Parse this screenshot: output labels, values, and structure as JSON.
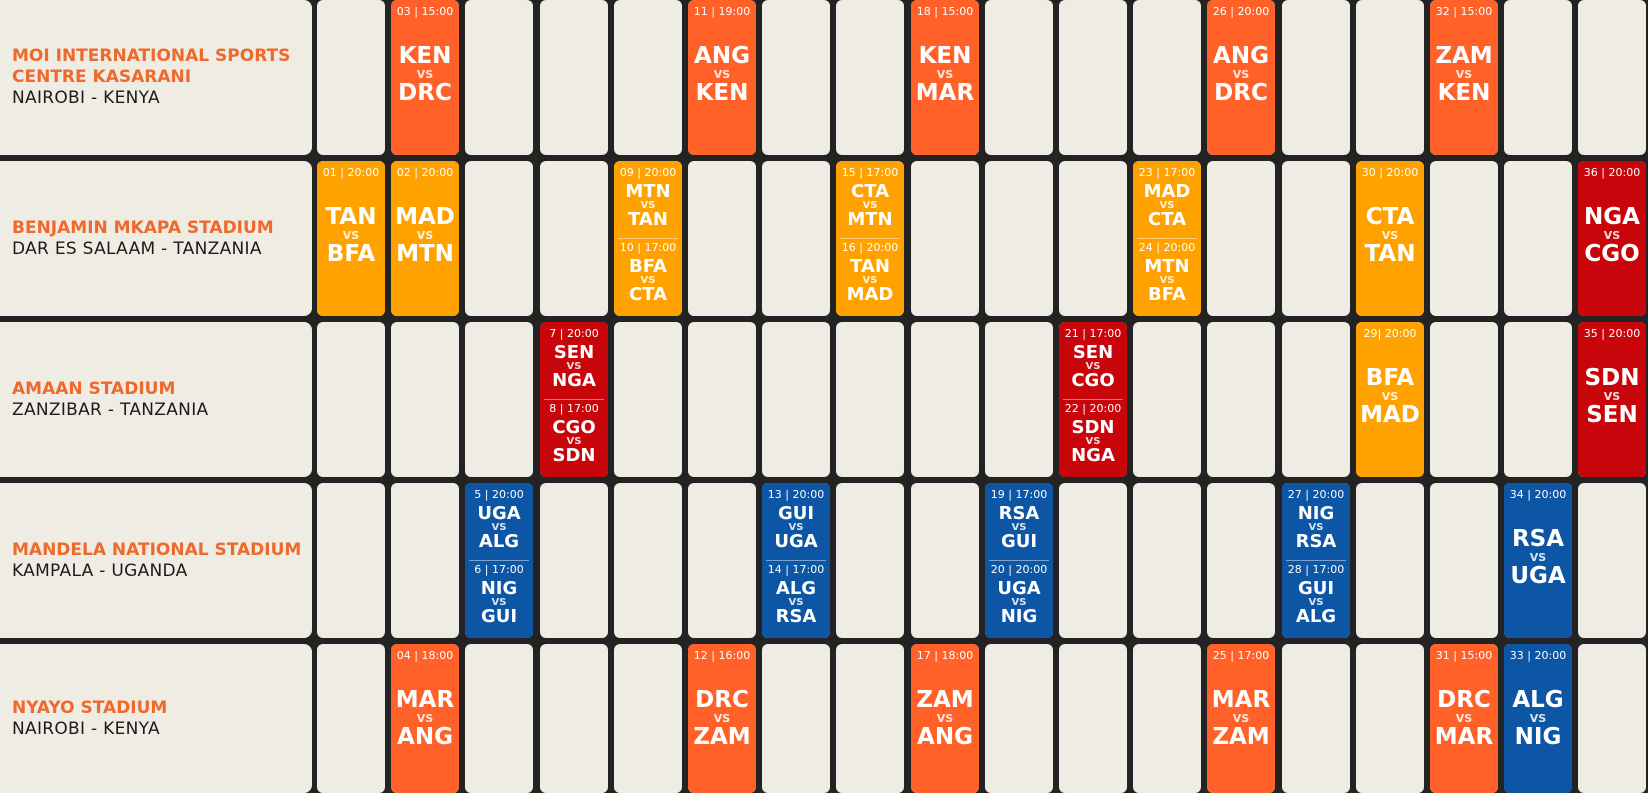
{
  "colors": {
    "background": "#232323",
    "cell": "#efece4",
    "venue_name": "#ee6a2c",
    "venue_location": "#1b1b1b",
    "group_a": "#ff6129",
    "group_b": "#ffa200",
    "group_c": "#c8050a",
    "group_d": "#0d56a5"
  },
  "venues": [
    {
      "name": "MOI INTERNATIONAL SPORTS\nCENTRE KASARANI",
      "location": "NAIROBI - KENYA"
    },
    {
      "name": "BENJAMIN MKAPA STADIUM",
      "location": "DAR ES SALAAM - TANZANIA"
    },
    {
      "name": "AMAAN STADIUM",
      "location": "ZANZIBAR - TANZANIA"
    },
    {
      "name": "MANDELA NATIONAL STADIUM",
      "location": "KAMPALA - UGANDA"
    },
    {
      "name": "NYAYO STADIUM",
      "location": "NAIROBI - KENYA"
    }
  ],
  "matches": [
    {
      "row": 0,
      "col": 1,
      "group": "a",
      "games": [
        {
          "label": "03 | 15:00",
          "home": "KEN",
          "vs": "VS",
          "away": "DRC"
        }
      ]
    },
    {
      "row": 0,
      "col": 5,
      "group": "a",
      "games": [
        {
          "label": "11 | 19:00",
          "home": "ANG",
          "vs": "VS",
          "away": "KEN"
        }
      ]
    },
    {
      "row": 0,
      "col": 8,
      "group": "a",
      "games": [
        {
          "label": "18 | 15:00",
          "home": "KEN",
          "vs": "VS",
          "away": "MAR"
        }
      ]
    },
    {
      "row": 0,
      "col": 12,
      "group": "a",
      "games": [
        {
          "label": "26 | 20:00",
          "home": "ANG",
          "vs": "VS",
          "away": "DRC"
        }
      ]
    },
    {
      "row": 0,
      "col": 15,
      "group": "a",
      "games": [
        {
          "label": "32 | 15:00",
          "home": "ZAM",
          "vs": "VS",
          "away": "KEN"
        }
      ]
    },
    {
      "row": 1,
      "col": 0,
      "group": "b",
      "games": [
        {
          "label": "01 | 20:00",
          "home": "TAN",
          "vs": "VS",
          "away": "BFA"
        }
      ]
    },
    {
      "row": 1,
      "col": 1,
      "group": "b",
      "games": [
        {
          "label": "02 | 20:00",
          "home": "MAD",
          "vs": "VS",
          "away": "MTN"
        }
      ]
    },
    {
      "row": 1,
      "col": 4,
      "group": "b",
      "games": [
        {
          "label": "09 | 20:00",
          "home": "MTN",
          "vs": "VS",
          "away": "TAN"
        },
        {
          "label": "10 | 17:00",
          "home": "BFA",
          "vs": "VS",
          "away": "CTA"
        }
      ]
    },
    {
      "row": 1,
      "col": 7,
      "group": "b",
      "games": [
        {
          "label": "15 | 17:00",
          "home": "CTA",
          "vs": "VS",
          "away": "MTN"
        },
        {
          "label": "16 | 20:00",
          "home": "TAN",
          "vs": "VS",
          "away": "MAD"
        }
      ]
    },
    {
      "row": 1,
      "col": 11,
      "group": "b",
      "games": [
        {
          "label": "23 | 17:00",
          "home": "MAD",
          "vs": "VS",
          "away": "CTA"
        },
        {
          "label": "24 | 20:00",
          "home": "MTN",
          "vs": "VS",
          "away": "BFA"
        }
      ]
    },
    {
      "row": 1,
      "col": 14,
      "group": "b",
      "games": [
        {
          "label": "30 | 20:00",
          "home": "CTA",
          "vs": "VS",
          "away": "TAN"
        }
      ]
    },
    {
      "row": 1,
      "col": 17,
      "group": "c",
      "games": [
        {
          "label": "36 | 20:00",
          "home": "NGA",
          "vs": "VS",
          "away": "CGO"
        }
      ]
    },
    {
      "row": 2,
      "col": 3,
      "group": "c",
      "games": [
        {
          "label": "7 | 20:00",
          "home": "SEN",
          "vs": "VS",
          "away": "NGA"
        },
        {
          "label": "8 | 17:00",
          "home": "CGO",
          "vs": "VS",
          "away": "SDN"
        }
      ]
    },
    {
      "row": 2,
      "col": 10,
      "group": "c",
      "games": [
        {
          "label": "21 | 17:00",
          "home": "SEN",
          "vs": "VS",
          "away": "CGO"
        },
        {
          "label": "22 | 20:00",
          "home": "SDN",
          "vs": "VS",
          "away": "NGA"
        }
      ]
    },
    {
      "row": 2,
      "col": 14,
      "group": "b",
      "games": [
        {
          "label": "29| 20:00",
          "home": "BFA",
          "vs": "VS",
          "away": "MAD"
        }
      ]
    },
    {
      "row": 2,
      "col": 17,
      "group": "c",
      "games": [
        {
          "label": "35 | 20:00",
          "home": "SDN",
          "vs": "VS",
          "away": "SEN"
        }
      ]
    },
    {
      "row": 3,
      "col": 2,
      "group": "d",
      "games": [
        {
          "label": "5 | 20:00",
          "home": "UGA",
          "vs": "VS",
          "away": "ALG"
        },
        {
          "label": "6 | 17:00",
          "home": "NIG",
          "vs": "VS",
          "away": "GUI"
        }
      ]
    },
    {
      "row": 3,
      "col": 6,
      "group": "d",
      "games": [
        {
          "label": "13 | 20:00",
          "home": "GUI",
          "vs": "VS",
          "away": "UGA"
        },
        {
          "label": "14 | 17:00",
          "home": "ALG",
          "vs": "VS",
          "away": "RSA"
        }
      ]
    },
    {
      "row": 3,
      "col": 9,
      "group": "d",
      "games": [
        {
          "label": "19 | 17:00",
          "home": "RSA",
          "vs": "VS",
          "away": "GUI"
        },
        {
          "label": "20 | 20:00",
          "home": "UGA",
          "vs": "VS",
          "away": "NIG"
        }
      ]
    },
    {
      "row": 3,
      "col": 13,
      "group": "d",
      "games": [
        {
          "label": "27 | 20:00",
          "home": "NIG",
          "vs": "VS",
          "away": "RSA"
        },
        {
          "label": "28 | 17:00",
          "home": "GUI",
          "vs": "VS",
          "away": "ALG"
        }
      ]
    },
    {
      "row": 3,
      "col": 16,
      "group": "d",
      "games": [
        {
          "label": "34 | 20:00",
          "home": "RSA",
          "vs": "VS",
          "away": "UGA"
        }
      ]
    },
    {
      "row": 4,
      "col": 1,
      "group": "a",
      "games": [
        {
          "label": "04 | 18:00",
          "home": "MAR",
          "vs": "VS",
          "away": "ANG"
        }
      ]
    },
    {
      "row": 4,
      "col": 5,
      "group": "a",
      "games": [
        {
          "label": "12 | 16:00",
          "home": "DRC",
          "vs": "VS",
          "away": "ZAM"
        }
      ]
    },
    {
      "row": 4,
      "col": 8,
      "group": "a",
      "games": [
        {
          "label": "17 | 18:00",
          "home": "ZAM",
          "vs": "VS",
          "away": "ANG"
        }
      ]
    },
    {
      "row": 4,
      "col": 12,
      "group": "a",
      "games": [
        {
          "label": "25 | 17:00",
          "home": "MAR",
          "vs": "VS",
          "away": "ZAM"
        }
      ]
    },
    {
      "row": 4,
      "col": 15,
      "group": "a",
      "games": [
        {
          "label": "31 | 15:00",
          "home": "DRC",
          "vs": "VS",
          "away": "MAR"
        }
      ]
    },
    {
      "row": 4,
      "col": 16,
      "group": "d",
      "games": [
        {
          "label": "33 | 20:00",
          "home": "ALG",
          "vs": "VS",
          "away": "NIG"
        }
      ]
    }
  ]
}
